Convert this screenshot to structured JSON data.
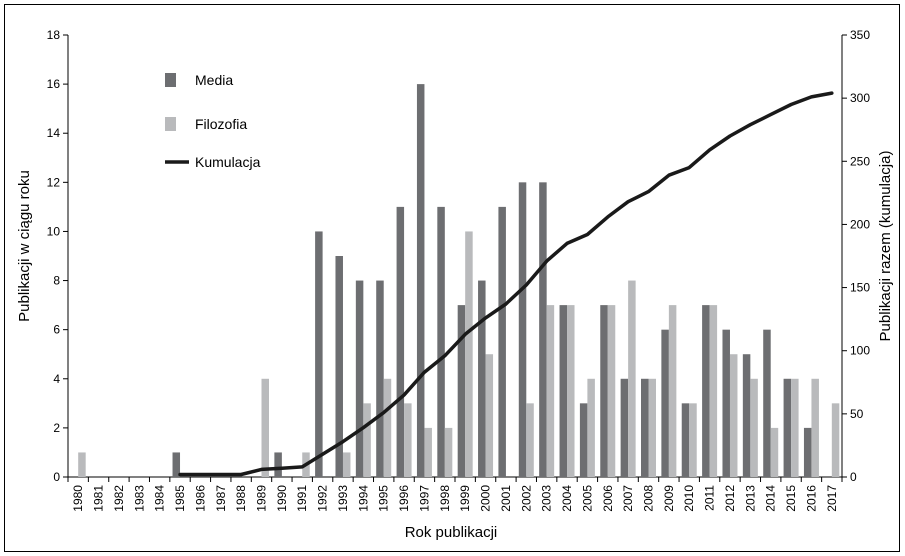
{
  "chart_data": {
    "type": "bar",
    "categories": [
      "1980",
      "1981",
      "1982",
      "1983",
      "1984",
      "1985",
      "1986",
      "1987",
      "1988",
      "1989",
      "1990",
      "1991",
      "1992",
      "1993",
      "1994",
      "1995",
      "1996",
      "1997",
      "1998",
      "1999",
      "2000",
      "2001",
      "2002",
      "2003",
      "2004",
      "2005",
      "2006",
      "2007",
      "2008",
      "2009",
      "2010",
      "2011",
      "2012",
      "2013",
      "2014",
      "2015",
      "2016",
      "2017"
    ],
    "series": [
      {
        "name": "Media",
        "type": "bar",
        "axis": "left",
        "color": "#6d6e71",
        "values": [
          0,
          0,
          0,
          0,
          0,
          1,
          0,
          0,
          0,
          0,
          1,
          0,
          10,
          9,
          8,
          8,
          11,
          16,
          11,
          7,
          8,
          11,
          12,
          12,
          7,
          3,
          7,
          4,
          4,
          6,
          3,
          7,
          6,
          5,
          6,
          4,
          2,
          0
        ]
      },
      {
        "name": "Filozofia",
        "type": "bar",
        "axis": "left",
        "color": "#b9babc",
        "values": [
          1,
          0,
          0,
          0,
          0,
          0,
          0,
          0,
          0,
          4,
          0,
          1,
          0,
          1,
          3,
          4,
          3,
          2,
          2,
          10,
          5,
          0,
          3,
          7,
          7,
          4,
          7,
          8,
          4,
          7,
          3,
          7,
          5,
          4,
          2,
          4,
          4,
          3
        ]
      },
      {
        "name": "Kumulacja",
        "type": "line",
        "axis": "right",
        "color": "#1a1a1a",
        "values": [
          null,
          null,
          null,
          null,
          null,
          2,
          2,
          2,
          2,
          6,
          7,
          8,
          18,
          28,
          39,
          51,
          65,
          83,
          96,
          113,
          126,
          137,
          152,
          171,
          185,
          192,
          206,
          218,
          226,
          239,
          245,
          259,
          270,
          279,
          287,
          295,
          301,
          304
        ]
      }
    ],
    "xlabel": "Rok publikacji",
    "ylabel": "Publikacji w ciągu roku",
    "y2label": "Publikacji razem (kumulacja)",
    "ylim": [
      0,
      18
    ],
    "yticks": [
      0,
      2,
      4,
      6,
      8,
      10,
      12,
      14,
      16,
      18
    ],
    "y2lim": [
      0,
      350
    ],
    "y2ticks": [
      0,
      50,
      100,
      150,
      200,
      250,
      300,
      350
    ],
    "grid": false,
    "legend_position": "top-left"
  }
}
